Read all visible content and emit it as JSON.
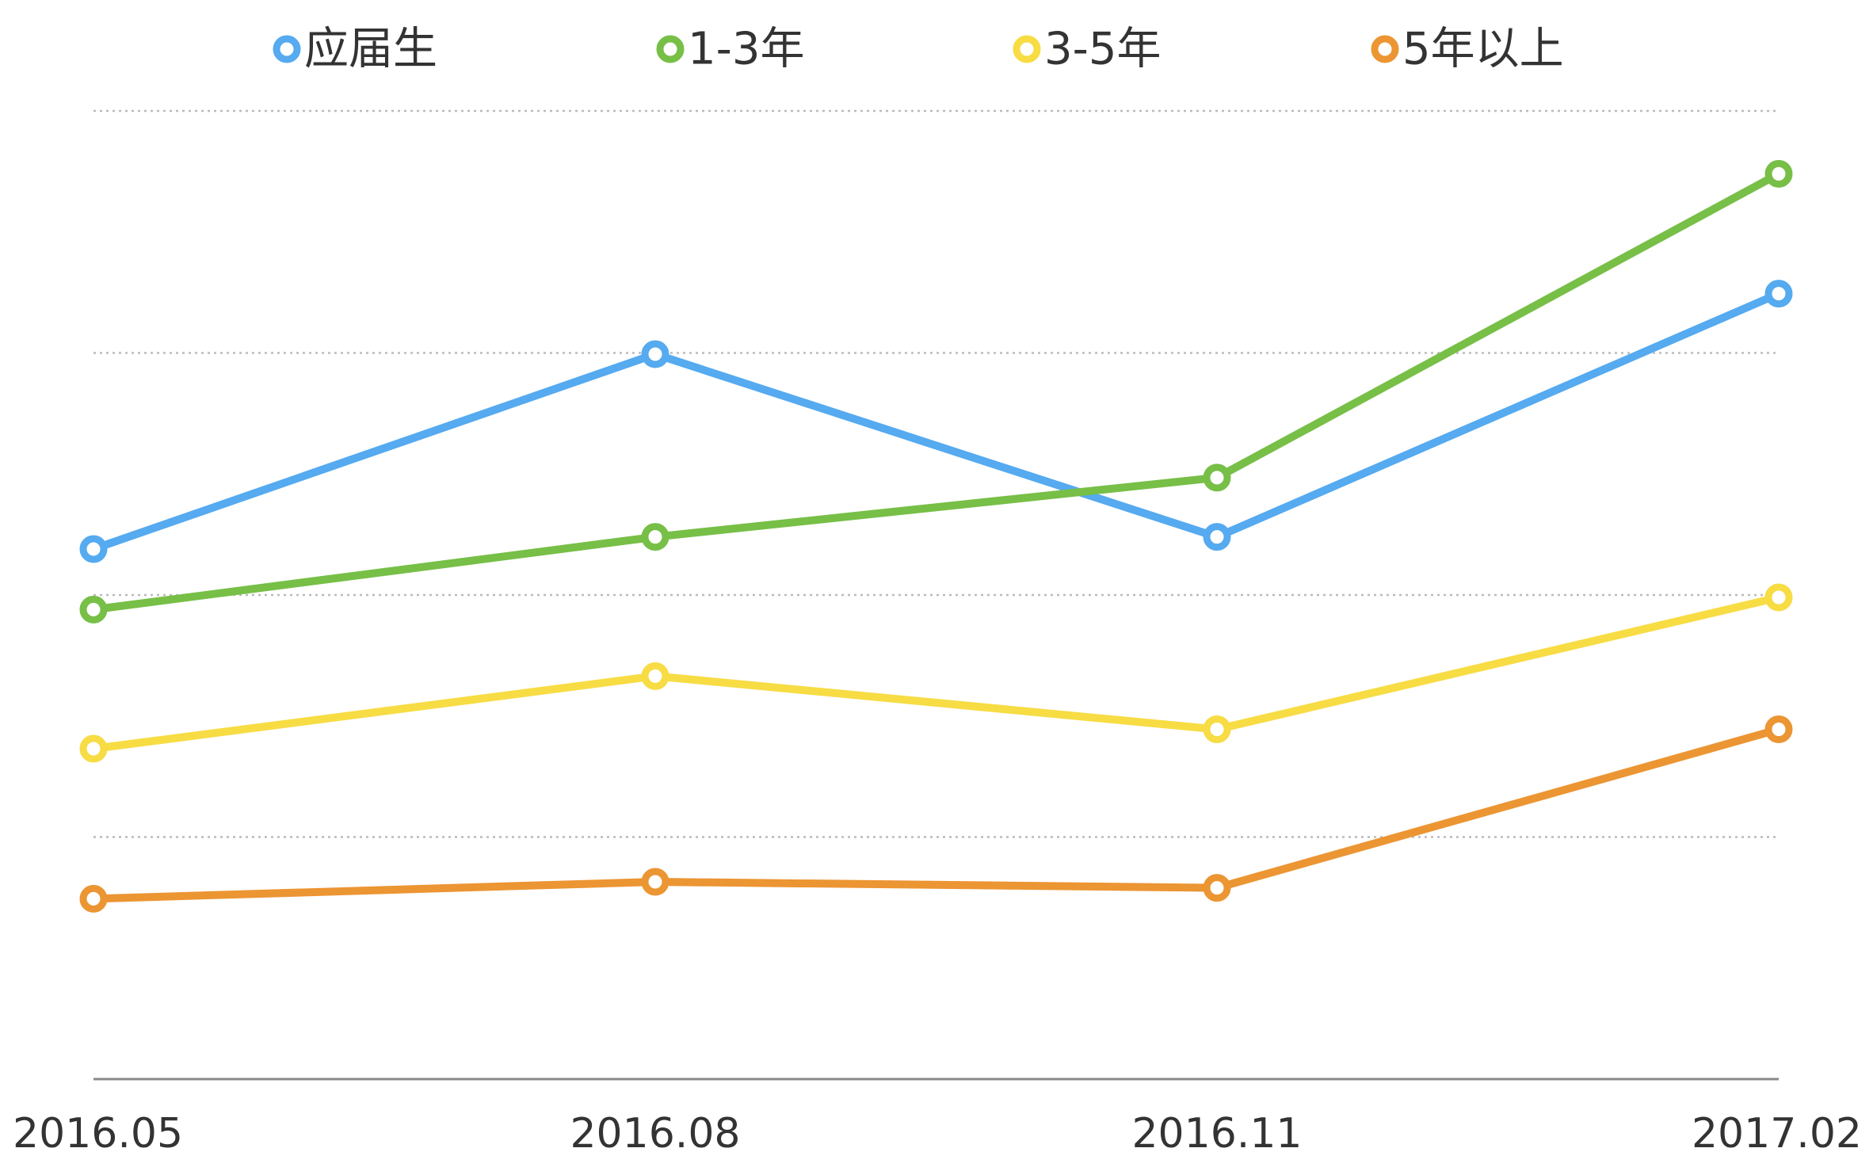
{
  "chart_data": {
    "type": "line",
    "title": "",
    "xlabel": "",
    "ylabel": "",
    "categories": [
      "2016.05",
      "2016.08",
      "2016.11",
      "2017.02"
    ],
    "ylim": [
      0,
      8
    ],
    "y_gridlines": [
      2,
      4,
      6,
      8
    ],
    "y_tick_labels_shown": false,
    "grid": true,
    "legend_position": "top",
    "series": [
      {
        "name": "应届生",
        "color": "#55aaf0",
        "values": [
          4.38,
          5.99,
          4.48,
          6.49
        ]
      },
      {
        "name": "1-3年",
        "color": "#77bf47",
        "values": [
          3.88,
          4.48,
          4.97,
          7.48
        ]
      },
      {
        "name": "3-5年",
        "color": "#f7dc44",
        "values": [
          2.73,
          3.33,
          2.89,
          3.98
        ]
      },
      {
        "name": "5年以上",
        "color": "#ec9533",
        "values": [
          1.49,
          1.63,
          1.58,
          2.89
        ]
      }
    ]
  }
}
